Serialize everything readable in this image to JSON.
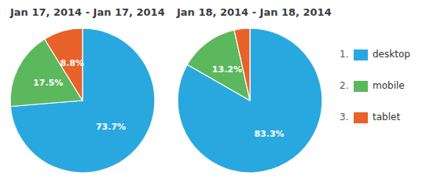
{
  "chart_data": [
    {
      "type": "pie",
      "title": "Jan 17, 2014 - Jan 17, 2014",
      "categories": [
        "desktop",
        "mobile",
        "tablet"
      ],
      "values": [
        73.7,
        17.5,
        8.8
      ],
      "value_labels": [
        "73.7%",
        "17.5%",
        "8.8%"
      ],
      "colors": [
        "#29a8e0",
        "#5cb85c",
        "#e8622a"
      ],
      "data_labels": true,
      "legend": "right"
    },
    {
      "type": "pie",
      "title": "Jan 18, 2014 - Jan 18, 2014",
      "categories": [
        "desktop",
        "mobile",
        "tablet"
      ],
      "values": [
        83.3,
        13.2,
        3.5
      ],
      "value_labels": [
        "83.3%",
        "13.2%",
        null
      ],
      "colors": [
        "#29a8e0",
        "#5cb85c",
        "#e8622a"
      ],
      "data_labels": true,
      "legend": "right"
    }
  ],
  "legend_numbers": [
    "1.",
    "2.",
    "3."
  ]
}
